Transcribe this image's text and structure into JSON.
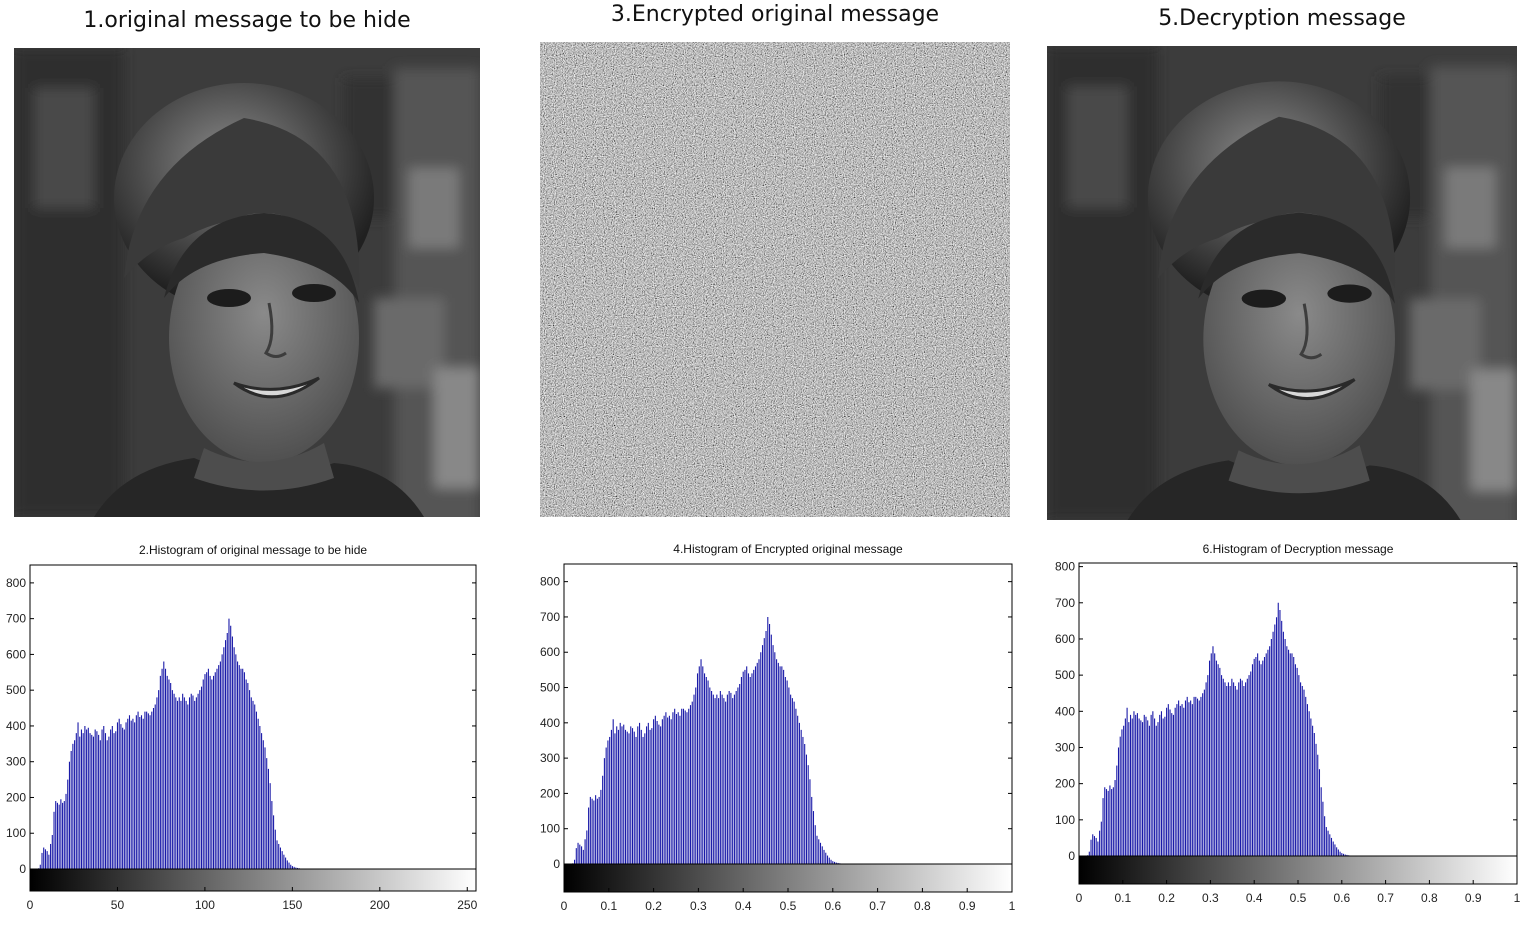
{
  "panels": [
    {
      "title": "1.original message to be hide",
      "image": "grayscale-portrait-woman"
    },
    {
      "title": "3.Encrypted original message",
      "image": "random-noise"
    },
    {
      "title": "5.Decryption message",
      "image": "grayscale-portrait-woman"
    }
  ],
  "colors": {
    "bars": "#1a1aa8",
    "axes": "#000000"
  },
  "chart_data": [
    {
      "type": "bar",
      "title": "2.Histogram of original message to be hide",
      "ylim": [
        0,
        850
      ],
      "yticks": [
        0,
        100,
        200,
        300,
        400,
        500,
        600,
        700,
        800
      ],
      "xlim": [
        0,
        255
      ],
      "xticks": [
        0,
        50,
        100,
        150,
        200,
        250
      ],
      "x_range": [
        0,
        255
      ],
      "colorbar": "gray",
      "series": [
        {
          "values": [
            0,
            0,
            0,
            0,
            0,
            2,
            12,
            45,
            60,
            55,
            50,
            40,
            70,
            95,
            160,
            190,
            185,
            180,
            195,
            185,
            190,
            210,
            250,
            300,
            330,
            350,
            360,
            380,
            410,
            370,
            390,
            380,
            400,
            390,
            395,
            380,
            375,
            370,
            390,
            385,
            375,
            360,
            390,
            400,
            380,
            360,
            370,
            390,
            400,
            380,
            385,
            410,
            420,
            405,
            395,
            390,
            410,
            420,
            430,
            415,
            420,
            410,
            430,
            440,
            425,
            430,
            420,
            440,
            440,
            435,
            430,
            440,
            450,
            460,
            480,
            500,
            540,
            560,
            580,
            560,
            540,
            530,
            520,
            500,
            490,
            480,
            470,
            480,
            470,
            490,
            480,
            470,
            460,
            480,
            490,
            485,
            470,
            480,
            490,
            500,
            510,
            530,
            545,
            550,
            560,
            540,
            530,
            540,
            550,
            560,
            570,
            580,
            600,
            620,
            640,
            660,
            700,
            680,
            650,
            620,
            600,
            580,
            570,
            560,
            560,
            550,
            530,
            520,
            500,
            480,
            470,
            460,
            440,
            420,
            400,
            380,
            360,
            340,
            310,
            280,
            240,
            190,
            150,
            110,
            80,
            70,
            60,
            50,
            40,
            32,
            24,
            18,
            12,
            8,
            6,
            4,
            3,
            2,
            1,
            1,
            1,
            0,
            0,
            0,
            0,
            0,
            0,
            0,
            0,
            0,
            0,
            0,
            0,
            0,
            0,
            0,
            0,
            0,
            0,
            0,
            0,
            0,
            0,
            0,
            0,
            0,
            0,
            0,
            0,
            0,
            0,
            0,
            0,
            0,
            0,
            0,
            0,
            0,
            0,
            0,
            0,
            0,
            0,
            0,
            0,
            0,
            0,
            0,
            0,
            0,
            0,
            0,
            0,
            0,
            0,
            0,
            0,
            0,
            0,
            0,
            0,
            0,
            0,
            0,
            0,
            0,
            0,
            0,
            0,
            0,
            0,
            0,
            0,
            0,
            0,
            0,
            0,
            0,
            0,
            0,
            0,
            0,
            0,
            0,
            0,
            0,
            0,
            0,
            0,
            0,
            0,
            0,
            0,
            0,
            0,
            0,
            0,
            0,
            0,
            0,
            0
          ]
        }
      ]
    },
    {
      "type": "bar",
      "title": "4.Histogram of Encrypted original message",
      "ylim": [
        0,
        850
      ],
      "yticks": [
        0,
        100,
        200,
        300,
        400,
        500,
        600,
        700,
        800
      ],
      "xlim": [
        0,
        1
      ],
      "xticks": [
        0,
        0.1,
        0.2,
        0.3,
        0.4,
        0.5,
        0.6,
        0.7,
        0.8,
        0.9,
        1
      ],
      "x_range": [
        0,
        1
      ],
      "colorbar": "gray",
      "series": [
        {
          "values": [
            0,
            0,
            0,
            0,
            0,
            2,
            12,
            45,
            60,
            55,
            50,
            40,
            70,
            95,
            160,
            190,
            185,
            180,
            195,
            185,
            190,
            210,
            250,
            300,
            330,
            350,
            360,
            380,
            410,
            370,
            390,
            380,
            400,
            390,
            395,
            380,
            375,
            370,
            390,
            385,
            375,
            360,
            390,
            400,
            380,
            360,
            370,
            390,
            400,
            380,
            385,
            410,
            420,
            405,
            395,
            390,
            410,
            420,
            430,
            415,
            420,
            410,
            430,
            440,
            425,
            430,
            420,
            440,
            440,
            435,
            430,
            440,
            450,
            460,
            480,
            500,
            540,
            560,
            580,
            560,
            540,
            530,
            520,
            500,
            490,
            480,
            470,
            480,
            470,
            490,
            480,
            470,
            460,
            480,
            490,
            485,
            470,
            480,
            490,
            500,
            510,
            530,
            545,
            550,
            560,
            540,
            530,
            540,
            550,
            560,
            570,
            580,
            600,
            620,
            640,
            660,
            700,
            680,
            650,
            620,
            600,
            580,
            570,
            560,
            560,
            550,
            530,
            520,
            500,
            480,
            470,
            460,
            440,
            420,
            400,
            380,
            360,
            340,
            310,
            280,
            240,
            190,
            150,
            110,
            80,
            70,
            60,
            50,
            40,
            32,
            24,
            18,
            12,
            8,
            6,
            4,
            3,
            2,
            1,
            1,
            1,
            0,
            0,
            0,
            0,
            0,
            0,
            0,
            0,
            0,
            0,
            0,
            0,
            0,
            0,
            0,
            0,
            0,
            0,
            0,
            0,
            0,
            0,
            0,
            0,
            0,
            0,
            0,
            0,
            0,
            0,
            0,
            0,
            0,
            0,
            0,
            0,
            0,
            0,
            0,
            0,
            0,
            0,
            0,
            0,
            0,
            0,
            0,
            0,
            0,
            0,
            0,
            0,
            0,
            0,
            0,
            0,
            0,
            0,
            0,
            0,
            0,
            0,
            0,
            0,
            0,
            0,
            0,
            0,
            0,
            0,
            0,
            0,
            0,
            0,
            0,
            0,
            0,
            0,
            0,
            0,
            0,
            0,
            0,
            0,
            0,
            0,
            0,
            0,
            0,
            0,
            0,
            0,
            0,
            0,
            0
          ]
        }
      ]
    },
    {
      "type": "bar",
      "title": "6.Histogram of Decryption message",
      "ylim": [
        0,
        810
      ],
      "yticks": [
        0,
        100,
        200,
        300,
        400,
        500,
        600,
        700,
        800
      ],
      "xlim": [
        0,
        1
      ],
      "xticks": [
        0,
        0.1,
        0.2,
        0.3,
        0.4,
        0.5,
        0.6,
        0.7,
        0.8,
        0.9,
        1
      ],
      "x_range": [
        0,
        1
      ],
      "colorbar": "gray",
      "series": [
        {
          "values": [
            0,
            0,
            0,
            0,
            0,
            2,
            12,
            45,
            60,
            55,
            50,
            40,
            70,
            95,
            160,
            190,
            185,
            180,
            195,
            185,
            190,
            210,
            250,
            300,
            330,
            350,
            360,
            380,
            410,
            370,
            390,
            380,
            400,
            390,
            395,
            380,
            375,
            370,
            390,
            385,
            375,
            360,
            390,
            400,
            380,
            360,
            370,
            390,
            400,
            380,
            385,
            410,
            420,
            405,
            395,
            390,
            410,
            420,
            430,
            415,
            420,
            410,
            430,
            440,
            425,
            430,
            420,
            440,
            440,
            435,
            430,
            440,
            450,
            460,
            480,
            500,
            540,
            560,
            580,
            560,
            540,
            530,
            520,
            500,
            490,
            480,
            470,
            480,
            470,
            490,
            480,
            470,
            460,
            480,
            490,
            485,
            470,
            480,
            490,
            500,
            510,
            530,
            545,
            550,
            560,
            540,
            530,
            540,
            550,
            560,
            570,
            580,
            600,
            620,
            640,
            660,
            700,
            680,
            650,
            620,
            600,
            580,
            570,
            560,
            560,
            550,
            530,
            520,
            500,
            480,
            470,
            460,
            440,
            420,
            400,
            380,
            360,
            340,
            310,
            280,
            240,
            190,
            150,
            110,
            80,
            70,
            60,
            50,
            40,
            32,
            24,
            18,
            12,
            8,
            6,
            4,
            3,
            2,
            1,
            1,
            1,
            0,
            0,
            0,
            0,
            0,
            0,
            0,
            0,
            0,
            0,
            0,
            0,
            0,
            0,
            0,
            0,
            0,
            0,
            0,
            0,
            0,
            0,
            0,
            0,
            0,
            0,
            0,
            0,
            0,
            0,
            0,
            0,
            0,
            0,
            0,
            0,
            0,
            0,
            0,
            0,
            0,
            0,
            0,
            0,
            0,
            0,
            0,
            0,
            0,
            0,
            0,
            0,
            0,
            0,
            0,
            0,
            0,
            0,
            0,
            0,
            0,
            0,
            0,
            0,
            0,
            0,
            0,
            0,
            0,
            0,
            0,
            0,
            0,
            0,
            0,
            0,
            0,
            0,
            0,
            0,
            0,
            0,
            0,
            0,
            0,
            0,
            0,
            0,
            0,
            0,
            0,
            0,
            0,
            0,
            0
          ]
        }
      ]
    }
  ]
}
